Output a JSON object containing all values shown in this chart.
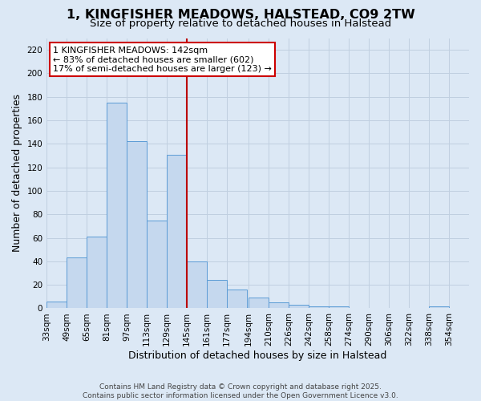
{
  "title": "1, KINGFISHER MEADOWS, HALSTEAD, CO9 2TW",
  "subtitle": "Size of property relative to detached houses in Halstead",
  "xlabel": "Distribution of detached houses by size in Halstead",
  "ylabel": "Number of detached properties",
  "bar_values": [
    6,
    43,
    61,
    175,
    142,
    75,
    131,
    40,
    24,
    16,
    9,
    5,
    3,
    2,
    2,
    0,
    0,
    0,
    0,
    2,
    0
  ],
  "bar_labels": [
    "33sqm",
    "49sqm",
    "65sqm",
    "81sqm",
    "97sqm",
    "113sqm",
    "129sqm",
    "145sqm",
    "161sqm",
    "177sqm",
    "194sqm",
    "210sqm",
    "226sqm",
    "242sqm",
    "258sqm",
    "274sqm",
    "290sqm",
    "306sqm",
    "322sqm",
    "338sqm",
    "354sqm"
  ],
  "bin_starts": [
    33,
    49,
    65,
    81,
    97,
    113,
    129,
    145,
    161,
    177,
    194,
    210,
    226,
    242,
    258,
    274,
    290,
    306,
    322,
    338,
    354
  ],
  "bin_width": 16,
  "bar_color": "#c5d8ee",
  "bar_edgecolor": "#5b9bd5",
  "vline_x": 145,
  "vline_color": "#bb0000",
  "annotation_title": "1 KINGFISHER MEADOWS: 142sqm",
  "annotation_line1": "← 83% of detached houses are smaller (602)",
  "annotation_line2": "17% of semi-detached houses are larger (123) →",
  "annotation_box_facecolor": "#ffffff",
  "annotation_box_edgecolor": "#cc0000",
  "ylim": [
    0,
    230
  ],
  "yticks": [
    0,
    20,
    40,
    60,
    80,
    100,
    120,
    140,
    160,
    180,
    200,
    220
  ],
  "grid_color": "#c0cfe0",
  "background_color": "#dce8f5",
  "footer1": "Contains HM Land Registry data © Crown copyright and database right 2025.",
  "footer2": "Contains public sector information licensed under the Open Government Licence v3.0.",
  "title_fontsize": 11.5,
  "subtitle_fontsize": 9.5,
  "axis_label_fontsize": 9,
  "tick_fontsize": 7.5,
  "annotation_fontsize": 8,
  "footer_fontsize": 6.5
}
